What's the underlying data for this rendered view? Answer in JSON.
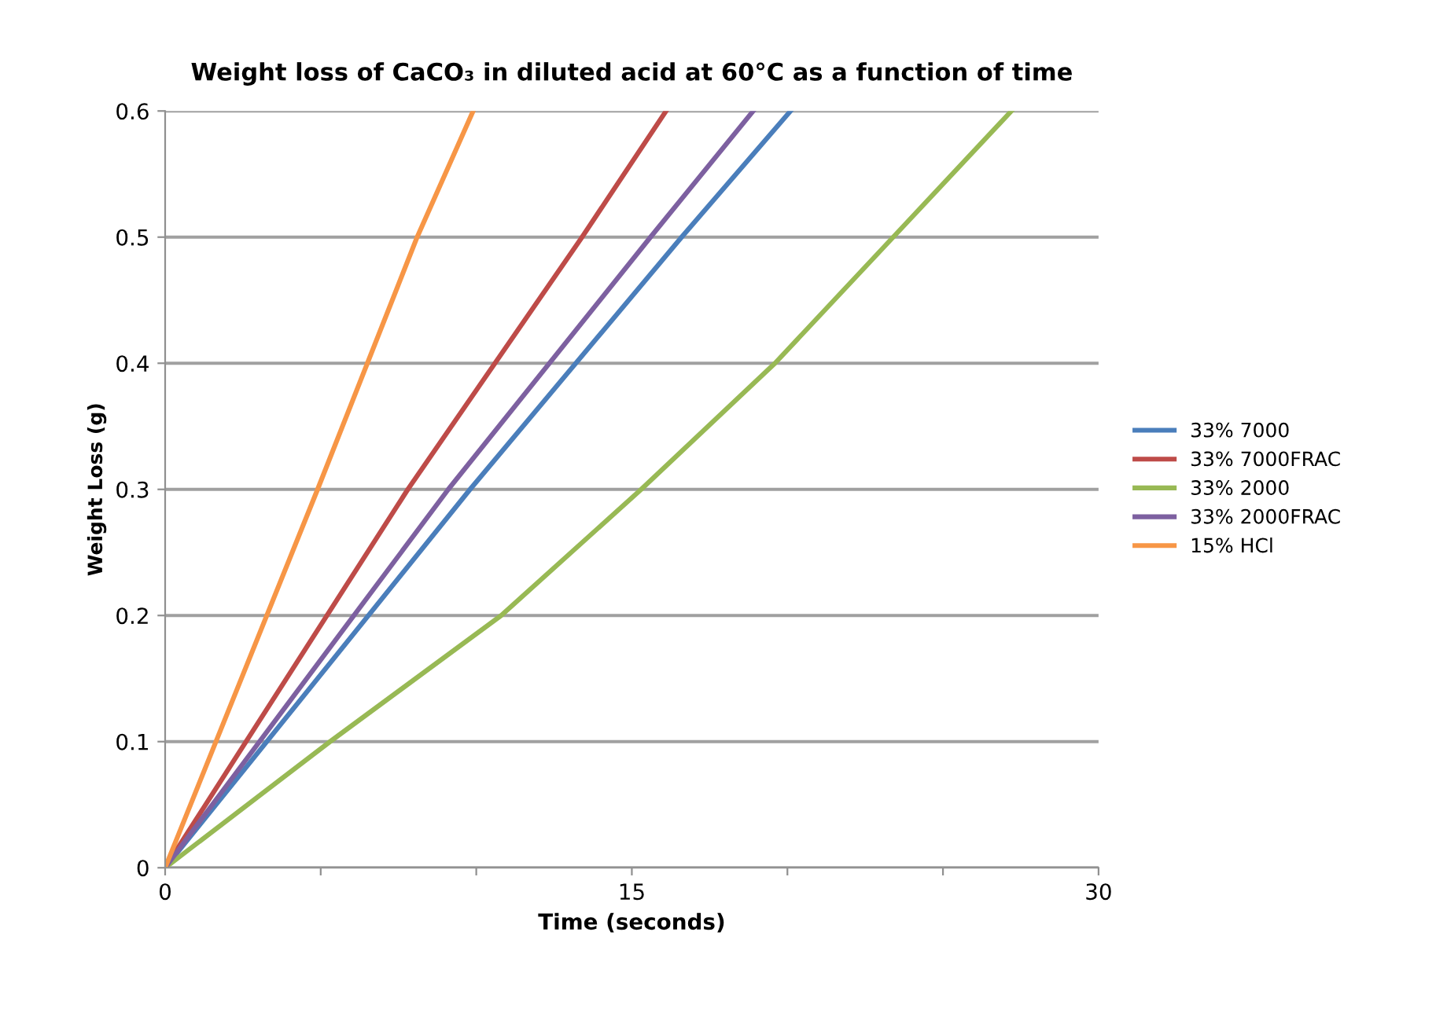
{
  "chart_data": {
    "type": "line",
    "title": "Weight loss of CaCO₃ in diluted acid at 60°C as a function of time",
    "xlabel": "Time (seconds)",
    "ylabel": "Weight Loss (g)",
    "xlim": [
      0,
      30
    ],
    "ylim": [
      0,
      0.6
    ],
    "xticks": [
      0,
      {
        "value": 5,
        "label": null
      },
      {
        "value": 10,
        "label": null
      },
      15,
      {
        "value": 20,
        "label": null
      },
      {
        "value": 25,
        "label": null
      },
      30
    ],
    "yticks": [
      0,
      0.1,
      0.2,
      0.3,
      0.4,
      0.5,
      0.6
    ],
    "grid": "y",
    "legend": "right",
    "marker": "none",
    "line_style": "solid",
    "series": [
      {
        "name": "33% 7000",
        "color": "#4a7ebb",
        "x": [
          0,
          9.8,
          16.6,
          20.1
        ],
        "values": [
          0,
          0.3,
          0.5,
          0.6
        ]
      },
      {
        "name": "33% 7000FRAC",
        "color": "#be4b48",
        "x": [
          0,
          7.8,
          13.4,
          16.1
        ],
        "values": [
          0,
          0.3,
          0.5,
          0.6
        ]
      },
      {
        "name": "33% 2000",
        "color": "#98b954",
        "x": [
          0,
          5.3,
          10.8,
          15.3,
          19.6,
          23.4,
          27.2
        ],
        "values": [
          0,
          0.1,
          0.2,
          0.3,
          0.4,
          0.5,
          0.6
        ]
      },
      {
        "name": "33% 2000FRAC",
        "color": "#7d60a0",
        "x": [
          0,
          9.1,
          15.6,
          18.9
        ],
        "values": [
          0,
          0.3,
          0.5,
          0.6
        ]
      },
      {
        "name": "15% HCl",
        "color": "#f79646",
        "x": [
          0,
          4.9,
          8.1,
          9.9
        ],
        "values": [
          0,
          0.3,
          0.5,
          0.6
        ]
      }
    ]
  }
}
